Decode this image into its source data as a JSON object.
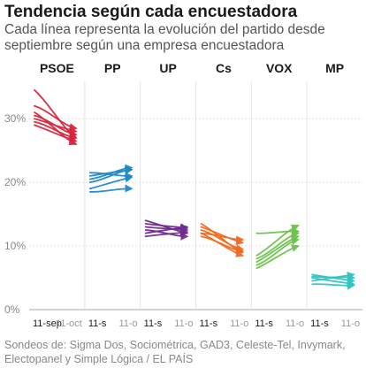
{
  "title": "Tendencia según cada encuestadora",
  "subtitle": "Cada línea representa la evolución del partido desde septiembre según una empresa encuestadora",
  "source": "Sondeos de: Sigma Dos, Sociométrica, GAD3, Celeste-Tel, Invymark, Electopanel y Simple Lógica / EL PAÍS",
  "chart_data": {
    "type": "line",
    "title": "Tendencia según cada encuestadora",
    "y_ticks": [
      "0%",
      "10%",
      "20%",
      "30%"
    ],
    "ylim": [
      0,
      36
    ],
    "grid": true,
    "x_range": [
      "11-sep",
      "11-oct"
    ],
    "panels": [
      {
        "party": "PSOE",
        "color": "#d7263d",
        "x_start_label": "11-sep",
        "x_end_label": "11-oct",
        "series": [
          {
            "start": 34.5,
            "end": 27.0
          },
          {
            "start": 32.0,
            "end": 28.5
          },
          {
            "start": 31.0,
            "end": 26.0
          },
          {
            "start": 30.5,
            "end": 27.5
          },
          {
            "start": 30.0,
            "end": 28.0
          },
          {
            "start": 29.5,
            "end": 27.0
          },
          {
            "start": 29.0,
            "end": 26.5
          }
        ]
      },
      {
        "party": "PP",
        "color": "#1e88c8",
        "x_start_label": "11-s",
        "x_end_label": "11-o",
        "series": [
          {
            "start": 20.0,
            "end": 22.0
          },
          {
            "start": 19.0,
            "end": 20.8
          },
          {
            "start": 18.5,
            "end": 19.0
          },
          {
            "start": 21.0,
            "end": 22.0
          },
          {
            "start": 20.5,
            "end": 22.3
          },
          {
            "start": 21.5,
            "end": 21.0
          }
        ]
      },
      {
        "party": "UP",
        "color": "#6f2c91",
        "x_start_label": "11-s",
        "x_end_label": "11-o",
        "series": [
          {
            "start": 13.0,
            "end": 12.5
          },
          {
            "start": 12.5,
            "end": 11.5
          },
          {
            "start": 14.0,
            "end": 12.0
          },
          {
            "start": 12.0,
            "end": 13.0
          },
          {
            "start": 13.5,
            "end": 12.8
          },
          {
            "start": 11.5,
            "end": 12.2
          }
        ]
      },
      {
        "party": "Cs",
        "color": "#f26b21",
        "x_start_label": "11-s",
        "x_end_label": "11-o",
        "series": [
          {
            "start": 13.5,
            "end": 9.0
          },
          {
            "start": 12.5,
            "end": 9.5
          },
          {
            "start": 12.0,
            "end": 8.5
          },
          {
            "start": 11.5,
            "end": 9.2
          },
          {
            "start": 13.0,
            "end": 10.5
          },
          {
            "start": 12.0,
            "end": 11.0
          }
        ]
      },
      {
        "party": "VOX",
        "color": "#6cc24a",
        "x_start_label": "11-s",
        "x_end_label": "11-o",
        "series": [
          {
            "start": 12.0,
            "end": 12.3
          },
          {
            "start": 8.5,
            "end": 13.2
          },
          {
            "start": 8.0,
            "end": 12.0
          },
          {
            "start": 7.5,
            "end": 11.5
          },
          {
            "start": 7.0,
            "end": 11.0
          },
          {
            "start": 6.5,
            "end": 10.0
          }
        ]
      },
      {
        "party": "MP",
        "color": "#2ec4c4",
        "x_start_label": "11-s",
        "x_end_label": "11-o",
        "series": [
          {
            "start": 5.0,
            "end": 4.0
          },
          {
            "start": 4.5,
            "end": 5.5
          },
          {
            "start": 5.5,
            "end": 4.5
          },
          {
            "start": 4.0,
            "end": 3.8
          },
          {
            "start": 5.2,
            "end": 5.0
          }
        ]
      }
    ]
  }
}
